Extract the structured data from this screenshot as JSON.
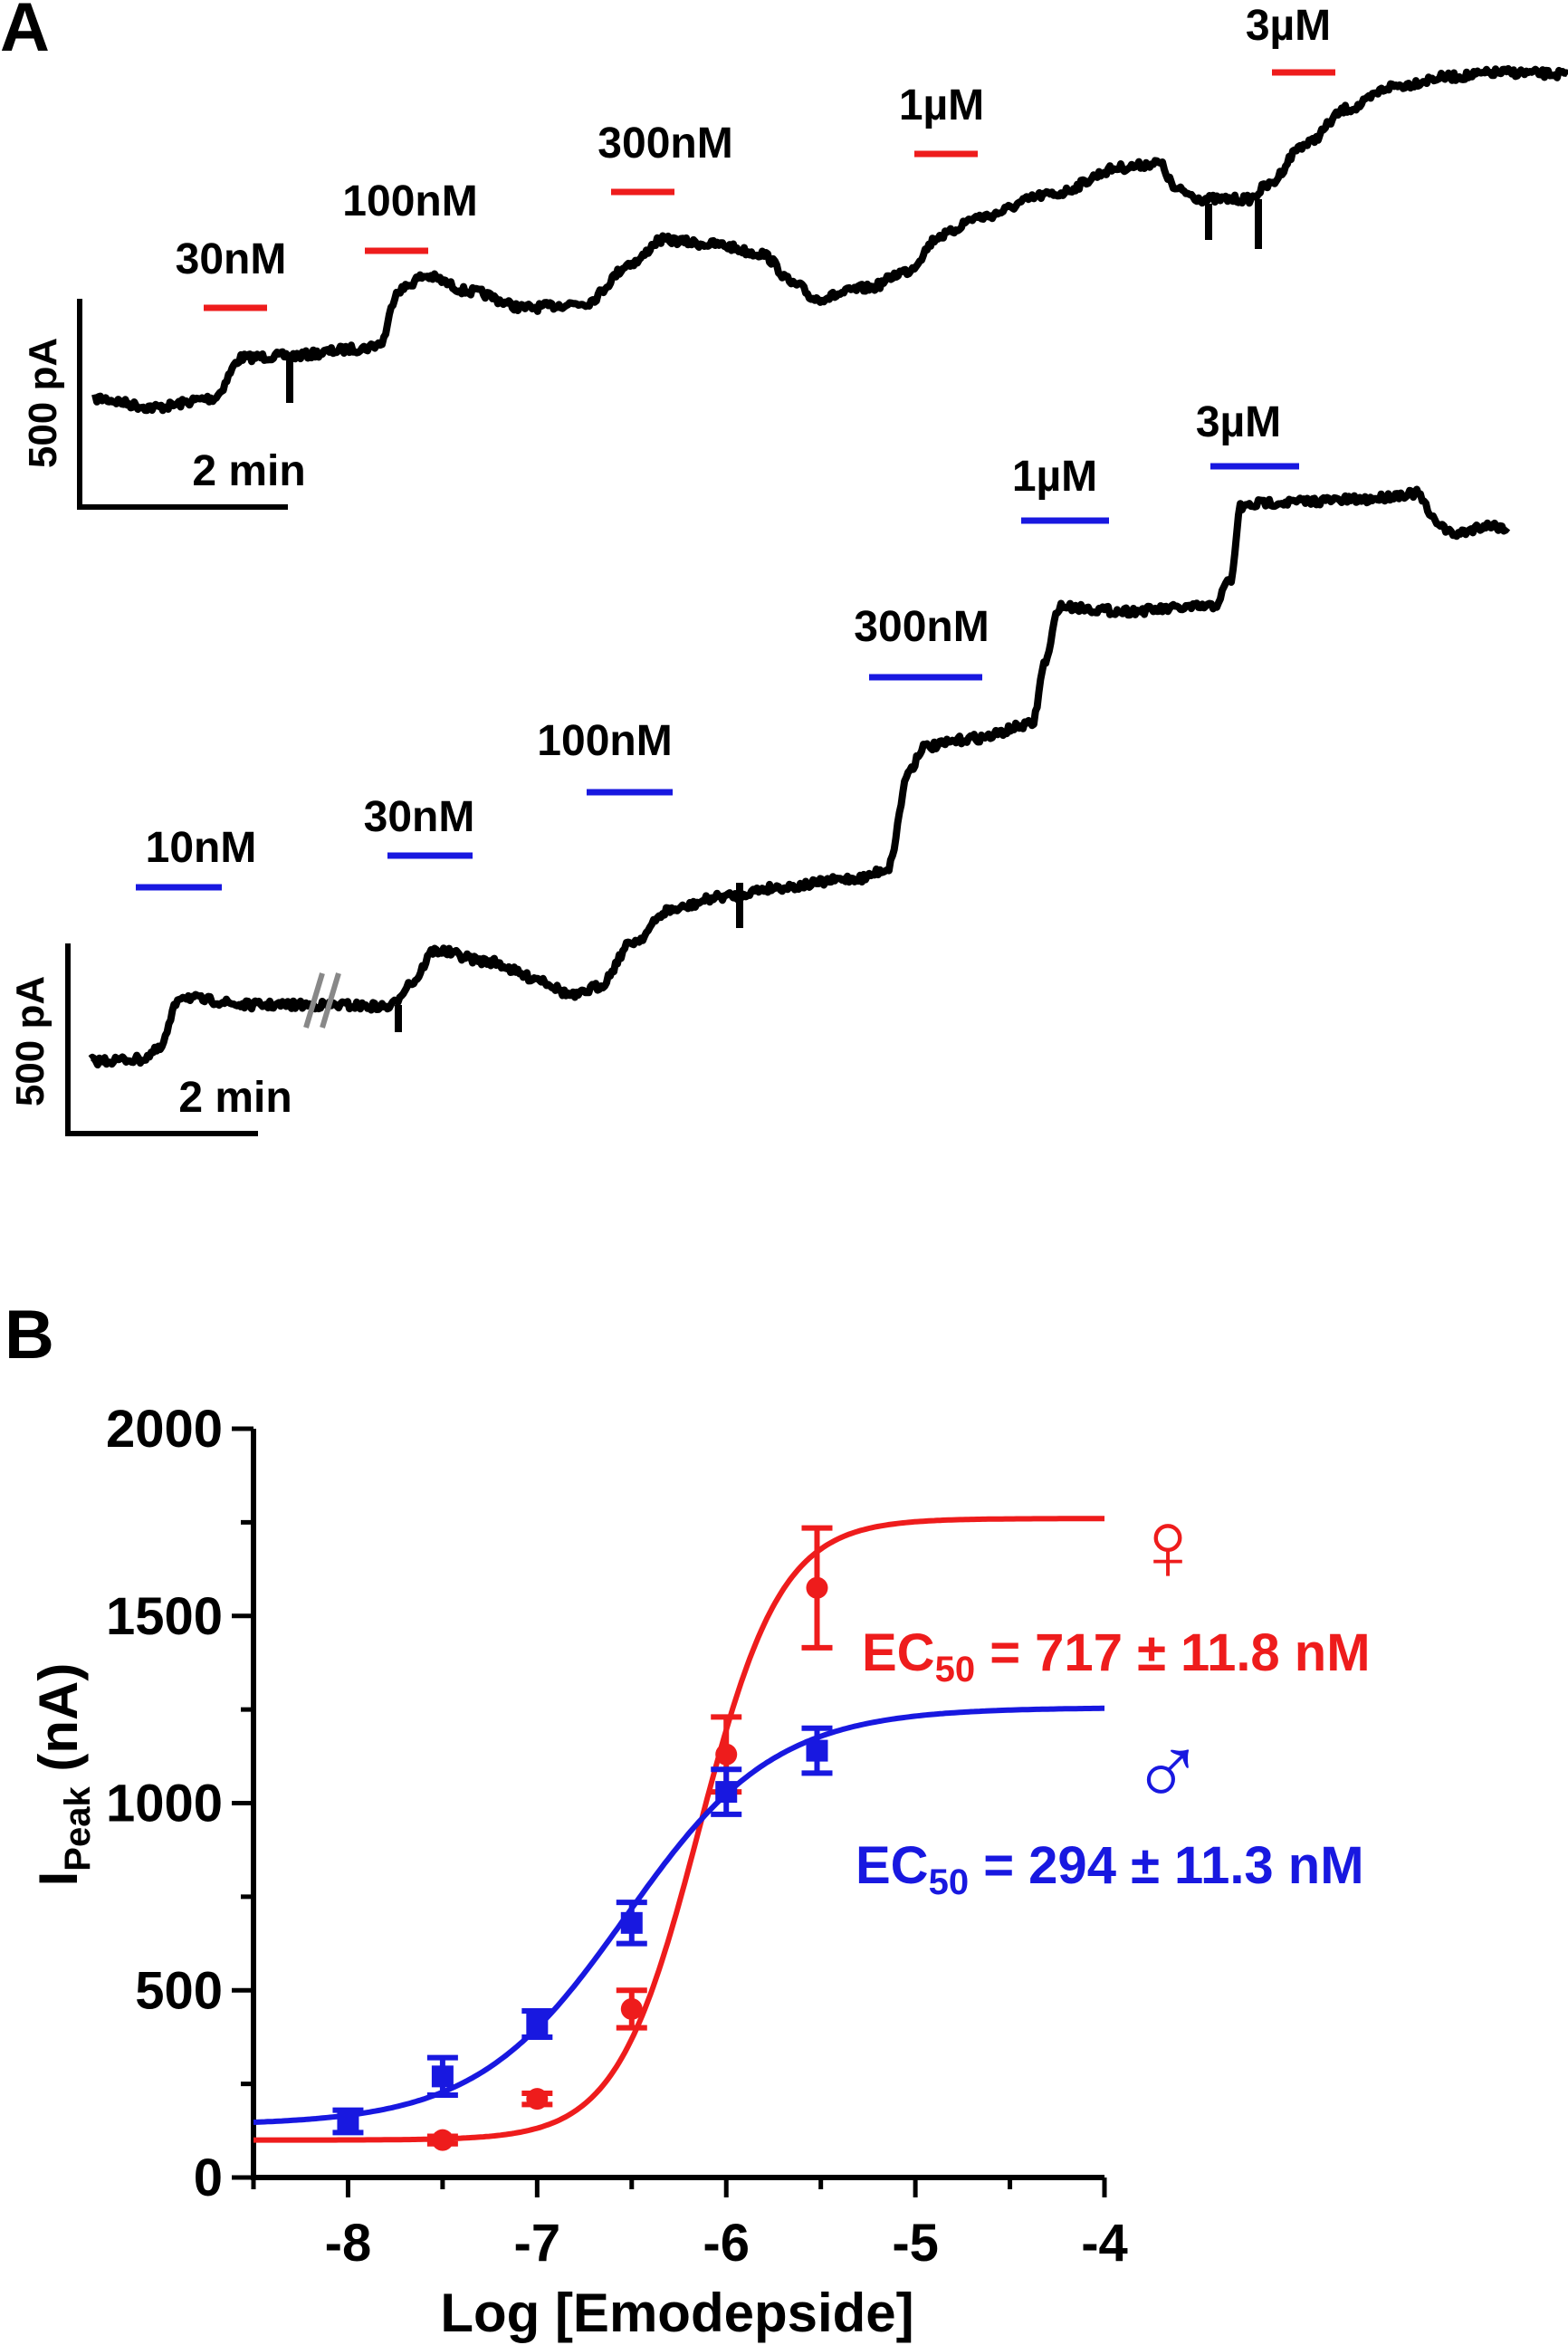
{
  "panel_a": {
    "label": "A",
    "trace_color": "#000000",
    "female_trace": {
      "bar_color": "#ee1c1c",
      "concentrations": [
        "30nM",
        "100nM",
        "300nM",
        "1µM",
        "3µM"
      ],
      "scale_y_label": "500 pA",
      "scale_x_label": "2 min"
    },
    "male_trace": {
      "bar_color": "#1818e0",
      "concentrations": [
        "10nM",
        "30nM",
        "100nM",
        "300nM",
        "1µM",
        "3µM"
      ],
      "scale_y_label": "500 pA",
      "scale_x_label": "2 min"
    }
  },
  "panel_b": {
    "label": "B",
    "female_symbol": "♀",
    "male_symbol": "♂",
    "female_ec50": {
      "prefix": "EC",
      "sub": "50",
      "text": " = 717 ± 11.8 nM"
    },
    "male_ec50": {
      "prefix": "EC",
      "sub": "50",
      "text": " = 294 ± 11.3 nM"
    }
  },
  "chart_data": {
    "type": "scatter",
    "xlabel": "Log [Emodepside]",
    "ylabel": {
      "main": "I",
      "sub": "Peak",
      "rest": " (nA)"
    },
    "xlim": [
      -8.5,
      -4
    ],
    "ylim": [
      0,
      2000
    ],
    "xticks": [
      -8,
      -7,
      -6,
      -5,
      -4
    ],
    "xtick_labels": [
      "-8",
      "-7",
      "-6",
      "-5",
      "-4"
    ],
    "yticks": [
      0,
      500,
      1000,
      1500,
      2000
    ],
    "ytick_labels": [
      "0",
      "500",
      "1000",
      "1500",
      "2000"
    ],
    "grid": false,
    "series": [
      {
        "color": "#ee1c1c",
        "marker": "circle",
        "x": [
          -7.5,
          -7.0,
          -6.5,
          -6.0,
          -5.52
        ],
        "y": [
          100,
          210,
          450,
          1130,
          1575
        ],
        "err": [
          10,
          15,
          50,
          100,
          160
        ],
        "fit": {
          "bottom": 100,
          "top": 1760,
          "log_ec50": -6.144,
          "hill": 2.0
        }
      },
      {
        "color": "#1818e0",
        "marker": "square",
        "x": [
          -8.0,
          -7.5,
          -7.0,
          -6.5,
          -6.0,
          -5.52
        ],
        "y": [
          150,
          270,
          410,
          680,
          1030,
          1140
        ],
        "err": [
          30,
          50,
          35,
          55,
          60,
          60
        ],
        "fit": {
          "bottom": 140,
          "top": 1255,
          "log_ec50": -6.53,
          "hill": 1.1
        }
      }
    ]
  }
}
